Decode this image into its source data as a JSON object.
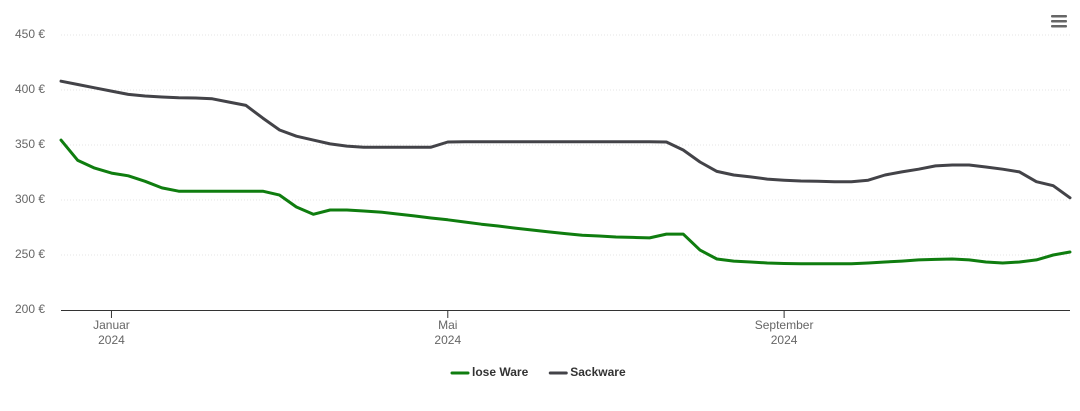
{
  "chart_data": {
    "type": "line",
    "categories": [
      null,
      null,
      null,
      [
        "Januar",
        "2024"
      ],
      null,
      null,
      null,
      null,
      null,
      null,
      null,
      null,
      null,
      null,
      null,
      null,
      null,
      null,
      null,
      null,
      null,
      null,
      null,
      [
        "Mai",
        "2024"
      ],
      null,
      null,
      null,
      null,
      null,
      null,
      null,
      null,
      null,
      null,
      null,
      null,
      null,
      null,
      null,
      null,
      null,
      null,
      null,
      [
        "September",
        "2024"
      ],
      null,
      null,
      null,
      null,
      null,
      null,
      null,
      null,
      null,
      null,
      null,
      null,
      null,
      null,
      null,
      null,
      null
    ],
    "series": [
      {
        "name": "lose Ware",
        "color": "#0f7d0f",
        "values": [
          354.5,
          336,
          329,
          324.5,
          322,
          317,
          311,
          308,
          308,
          308,
          308,
          308,
          308,
          304.5,
          293.6,
          287,
          290.9,
          290.9,
          290,
          289,
          287.3,
          285.5,
          283.6,
          282,
          280,
          278,
          276.4,
          274.5,
          272.7,
          271,
          269.5,
          268,
          267.3,
          266.4,
          266,
          265.5,
          269,
          269,
          254.5,
          246.4,
          244.5,
          243.6,
          242.7,
          242.3,
          242,
          242,
          242,
          242,
          242.7,
          243.6,
          244.5,
          245.5,
          246,
          246.4,
          245.5,
          243.6,
          242.7,
          243.6,
          245.5,
          250,
          252.7
        ]
      },
      {
        "name": "Sackware",
        "color": "#434348",
        "values": [
          408,
          405,
          402,
          399,
          396,
          394.5,
          393.6,
          393,
          392.7,
          392,
          389,
          386,
          374.5,
          363.6,
          358,
          354.5,
          351,
          349,
          348,
          348,
          348,
          348,
          348,
          352.7,
          353,
          353,
          353,
          353,
          353,
          353,
          353,
          353,
          353,
          353,
          353,
          353,
          352.7,
          345.5,
          334.5,
          326,
          322.7,
          321,
          319,
          318,
          317.3,
          317,
          316.6,
          316.6,
          318,
          322.7,
          325.5,
          328,
          331,
          331.8,
          331.8,
          330,
          328,
          325.5,
          316.6,
          313,
          302
        ]
      }
    ],
    "ylim": [
      200,
      450
    ],
    "yticks": [
      {
        "value": 200,
        "label": "200 €"
      },
      {
        "value": 250,
        "label": "250 €"
      },
      {
        "value": 300,
        "label": "300 €"
      },
      {
        "value": 350,
        "label": "350 €"
      },
      {
        "value": 400,
        "label": "400 €"
      },
      {
        "value": 450,
        "label": "450 €"
      }
    ],
    "grid": true,
    "legend": "bottom"
  }
}
